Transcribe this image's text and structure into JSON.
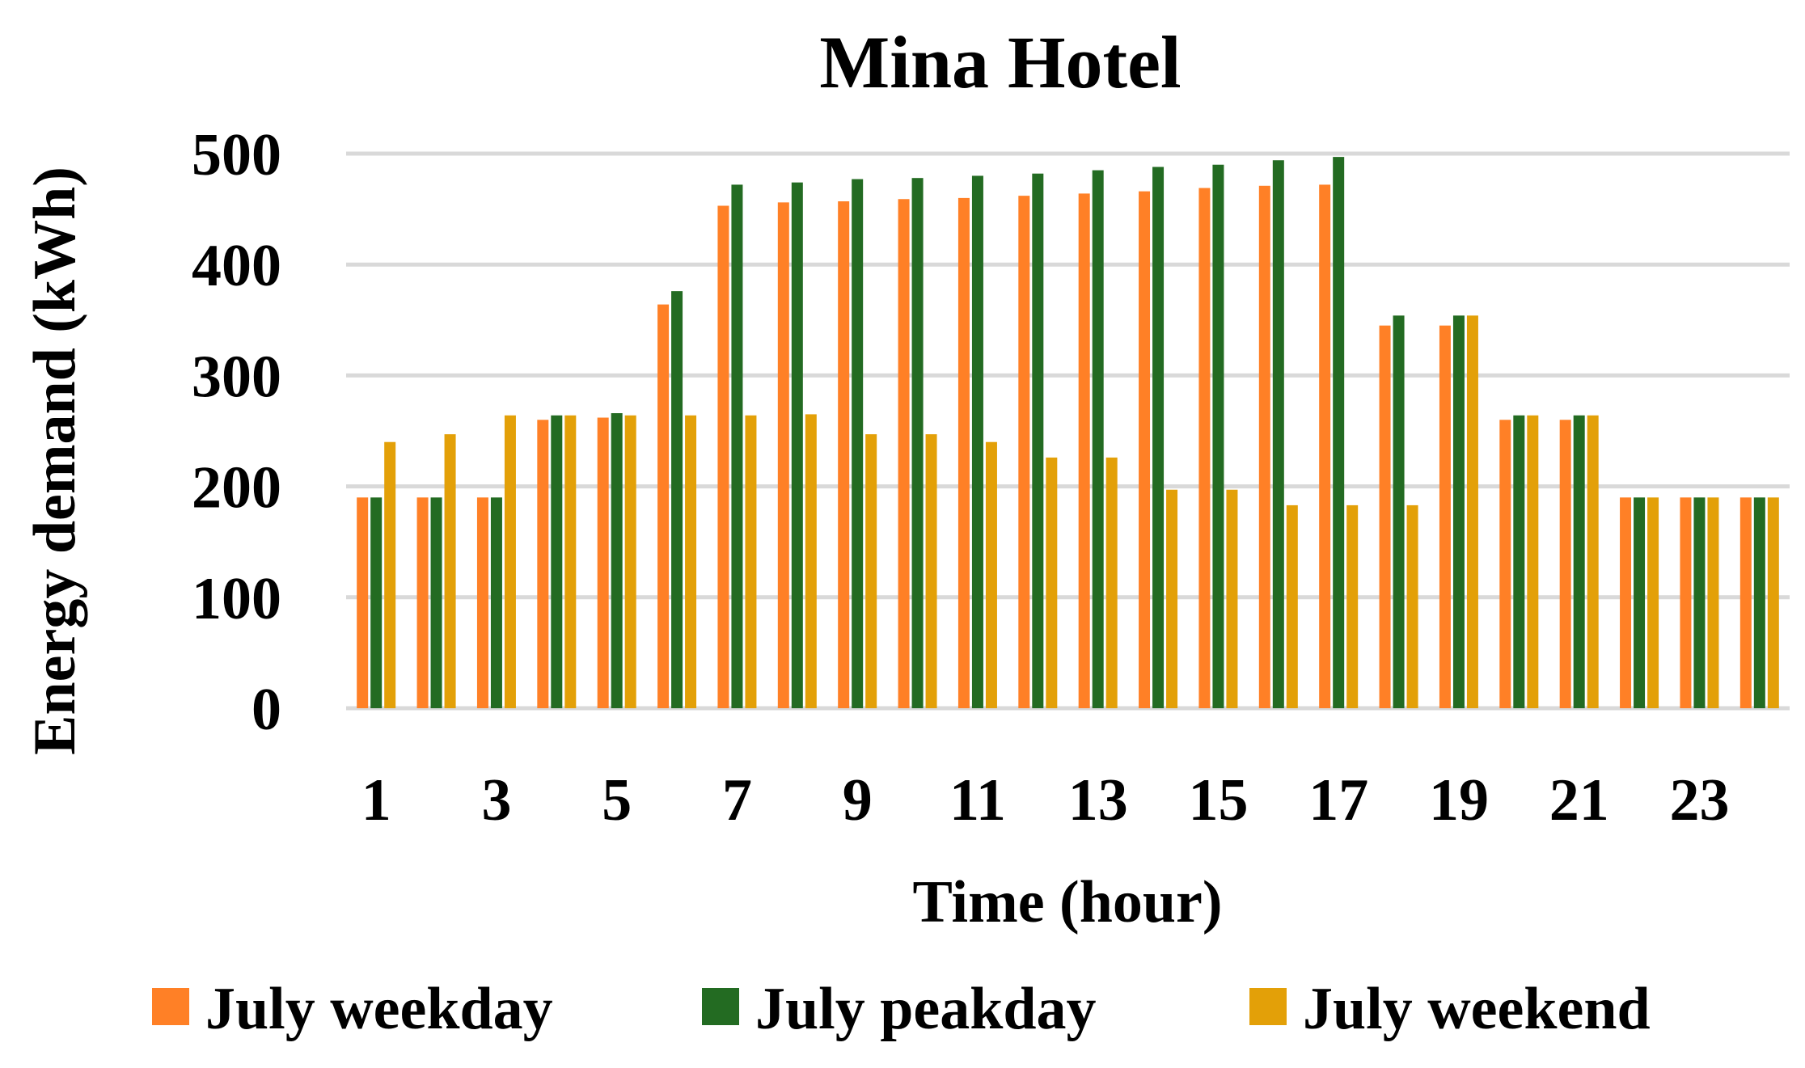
{
  "chart_data": {
    "type": "bar",
    "title": "Mina Hotel",
    "xlabel": "Time (hour)",
    "ylabel": "Energy demand (kWh)",
    "ylim": [
      0,
      500
    ],
    "yticks": [
      0,
      100,
      200,
      300,
      400,
      500
    ],
    "grid": true,
    "legend_position": "bottom",
    "categories": [
      1,
      2,
      3,
      4,
      5,
      6,
      7,
      8,
      9,
      10,
      11,
      12,
      13,
      14,
      15,
      16,
      17,
      18,
      19,
      20,
      21,
      22,
      23,
      24
    ],
    "xtick_labels": [
      "1",
      "",
      "3",
      "",
      "5",
      "",
      "7",
      "",
      "9",
      "",
      "11",
      "",
      "13",
      "",
      "15",
      "",
      "17",
      "",
      "19",
      "",
      "21",
      "",
      "23",
      ""
    ],
    "series": [
      {
        "name": "July weekday",
        "color": "#ff8026",
        "values": [
          190,
          190,
          190,
          260,
          262,
          364,
          453,
          456,
          457,
          459,
          460,
          462,
          464,
          466,
          469,
          471,
          472,
          345,
          345,
          260,
          260,
          190,
          190,
          190
        ]
      },
      {
        "name": "July peakday",
        "color": "#236b22",
        "values": [
          190,
          190,
          190,
          264,
          266,
          376,
          472,
          474,
          477,
          478,
          480,
          482,
          485,
          488,
          490,
          494,
          497,
          354,
          354,
          264,
          264,
          190,
          190,
          190
        ]
      },
      {
        "name": "July weekend",
        "color": "#e3a008",
        "values": [
          240,
          247,
          264,
          264,
          264,
          264,
          264,
          265,
          247,
          247,
          240,
          226,
          226,
          197,
          197,
          183,
          183,
          183,
          354,
          264,
          264,
          190,
          190,
          190
        ]
      }
    ]
  }
}
